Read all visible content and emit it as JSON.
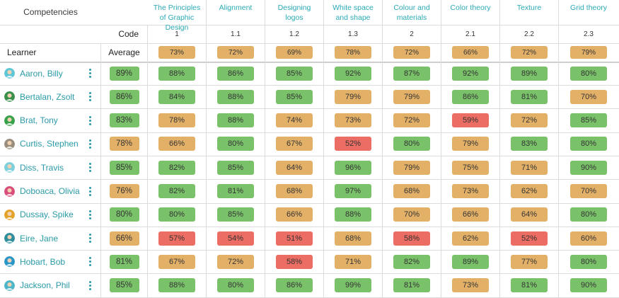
{
  "header": {
    "competencies_label": "Competencies",
    "code_label": "Code",
    "learner_label": "Learner",
    "average_label": "Average"
  },
  "competencies": [
    {
      "name": "The Principles of Graphic Design",
      "code": "1",
      "avg": "73%"
    },
    {
      "name": "Alignment",
      "code": "1.1",
      "avg": "72%"
    },
    {
      "name": "Designing logos",
      "code": "1.2",
      "avg": "69%"
    },
    {
      "name": "White space and shape",
      "code": "1.3",
      "avg": "78%"
    },
    {
      "name": "Colour and materials",
      "code": "2",
      "avg": "72%"
    },
    {
      "name": "Color theory",
      "code": "2.1",
      "avg": "66%"
    },
    {
      "name": "Texture",
      "code": "2.2",
      "avg": "72%"
    },
    {
      "name": "Grid theory",
      "code": "2.3",
      "avg": "79%"
    }
  ],
  "learners": [
    {
      "name": "Aaron, Billy",
      "avg": "89%",
      "scores": [
        "88%",
        "86%",
        "85%",
        "92%",
        "87%",
        "92%",
        "89%",
        "80%"
      ],
      "avatar_color": "#5fc6d6"
    },
    {
      "name": "Bertalan, Zsolt",
      "avg": "86%",
      "scores": [
        "84%",
        "88%",
        "85%",
        "79%",
        "79%",
        "86%",
        "81%",
        "70%"
      ],
      "avatar_color": "#3a8f4a"
    },
    {
      "name": "Brat, Tony",
      "avg": "83%",
      "scores": [
        "78%",
        "88%",
        "74%",
        "73%",
        "72%",
        "59%",
        "72%",
        "85%"
      ],
      "avatar_color": "#37a24b"
    },
    {
      "name": "Curtis, Stephen",
      "avg": "78%",
      "scores": [
        "66%",
        "80%",
        "67%",
        "52%",
        "80%",
        "79%",
        "83%",
        "80%"
      ],
      "avatar_color": "#9a8d7c"
    },
    {
      "name": "Diss, Travis",
      "avg": "85%",
      "scores": [
        "82%",
        "85%",
        "64%",
        "96%",
        "79%",
        "75%",
        "71%",
        "90%"
      ],
      "avatar_color": "#7ed0dc"
    },
    {
      "name": "Doboaca, Olivia",
      "avg": "76%",
      "scores": [
        "82%",
        "81%",
        "68%",
        "97%",
        "68%",
        "73%",
        "62%",
        "70%"
      ],
      "avatar_color": "#d94d7a"
    },
    {
      "name": "Dussay, Spike",
      "avg": "80%",
      "scores": [
        "80%",
        "85%",
        "66%",
        "88%",
        "70%",
        "66%",
        "64%",
        "80%"
      ],
      "avatar_color": "#e3a32b"
    },
    {
      "name": "Eire, Jane",
      "avg": "66%",
      "scores": [
        "57%",
        "54%",
        "51%",
        "68%",
        "58%",
        "62%",
        "52%",
        "60%"
      ],
      "avatar_color": "#2f8e9b"
    },
    {
      "name": "Hobart, Bob",
      "avg": "81%",
      "scores": [
        "67%",
        "72%",
        "58%",
        "71%",
        "82%",
        "89%",
        "77%",
        "80%"
      ],
      "avatar_color": "#2a96c8"
    },
    {
      "name": "Jackson, Phil",
      "avg": "85%",
      "scores": [
        "88%",
        "80%",
        "86%",
        "99%",
        "81%",
        "73%",
        "81%",
        "90%"
      ],
      "avatar_color": "#4db6c9"
    }
  ],
  "colors": {
    "green": "#7ac26a",
    "orange": "#e3b068",
    "red": "#ec6d63",
    "accent": "#2aa9b4"
  }
}
